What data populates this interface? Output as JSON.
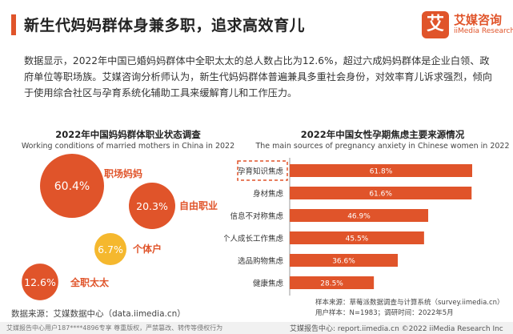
{
  "header": {
    "title": "新生代妈妈群体身兼多职，追求高效育儿"
  },
  "logo": {
    "mark": "艾",
    "name_cn": "艾媒咨询",
    "name_en": "iiMedia Research"
  },
  "intro": "数据显示，2022年中国已婚妈妈群体中全职太太的总人数占比为12.6%，超过六成妈妈群体是企业白领、政府单位等职场族。艾媒咨询分析师认为，新生代妈妈群体普遍兼具多重社会身份，对效率育儿诉求强烈，倾向于使用综合社区与孕育系统化辅助工具来缓解育儿和工作压力。",
  "colors": {
    "accent": "#e0542a",
    "bubble_yellow": "#f5b82e",
    "bar": "#e0542a",
    "highlight_box": "#e0542a"
  },
  "chart_data": [
    {
      "type": "bubble",
      "title": "2022年中国妈妈群体职业状态调查",
      "subtitle": "Working conditions of married mothers in China in 2022",
      "unit": "%",
      "categories": [
        "职场妈妈",
        "自由职业",
        "个体户",
        "全职太太"
      ],
      "values": [
        60.4,
        20.3,
        6.7,
        12.6
      ],
      "labels": [
        "60.4%",
        "20.3%",
        "6.7%",
        "12.6%"
      ],
      "colors": [
        "#e0542a",
        "#e0542a",
        "#f5b82e",
        "#e0542a"
      ]
    },
    {
      "type": "bar",
      "orientation": "horizontal",
      "title": "2022年中国女性孕期焦虑主要来源情况",
      "subtitle": "The main sources of pregnancy anxiety in Chinese women in 2022",
      "unit": "%",
      "categories": [
        "孕育知识焦虑",
        "身材焦虑",
        "信息不对称焦虑",
        "个人成长工作焦虑",
        "选品购物焦虑",
        "健康焦虑"
      ],
      "values": [
        61.8,
        61.6,
        46.9,
        45.5,
        36.6,
        28.5
      ],
      "labels": [
        "61.8%",
        "61.6%",
        "46.9%",
        "45.5%",
        "36.6%",
        "28.5%"
      ],
      "highlighted_category": "孕育知识焦虑",
      "grid": false,
      "legend": "none"
    }
  ],
  "notes": {
    "sample": "样本来源：草莓派数据调查与计算系统（survey.iimedia.cn）",
    "sample2": "用户样本：N=1983；调研时间：2022年5月",
    "source": "数据来源：艾媒数据中心（data.iimedia.cn）"
  },
  "footer": {
    "left": "艾媒报告中心用户187****4896专享 尊重版权，严禁篡改、转传等侵权行为",
    "right": "艾媒报告中心: report.iimedia.cn  ©2022 iiMedia Research Inc"
  }
}
